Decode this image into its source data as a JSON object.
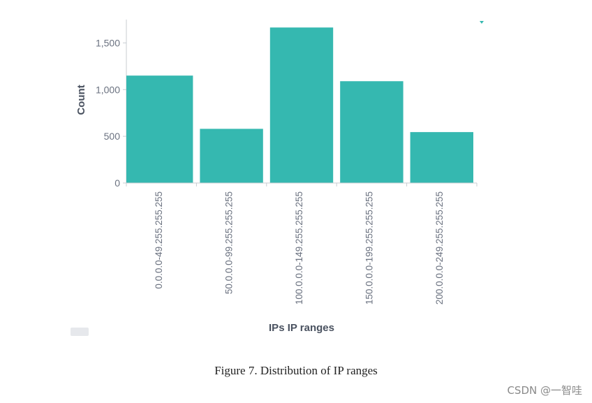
{
  "chart_data": {
    "type": "bar",
    "xlabel": "IPs IP ranges",
    "ylabel": "Count",
    "ylim": [
      0,
      1750
    ],
    "yticks": [
      0,
      500,
      1000,
      1500
    ],
    "ytick_labels": [
      "0",
      "500",
      "1,000",
      "1,500"
    ],
    "categories": [
      "0.0.0.0-49.255.255.255",
      "50.0.0.0-99.255.255.255",
      "100.0.0.0-149.255.255.255",
      "150.0.0.0-199.255.255.255",
      "200.0.0.0-249.255.255.255"
    ],
    "values": [
      1150,
      580,
      1665,
      1090,
      545
    ],
    "bar_color": "#35b8b0",
    "grid": false,
    "legend": "none"
  },
  "caption": "Figure 7. Distribution of IP ranges",
  "watermark": "CSDN @一智哇"
}
